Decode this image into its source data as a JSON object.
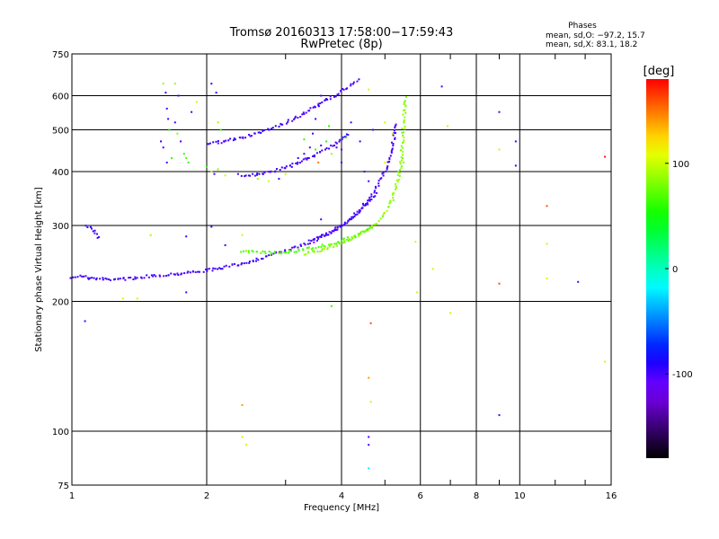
{
  "chart_data": {
    "type": "scatter",
    "title": "Tromsø 20160313 17:58:00−17:59:43",
    "subtitle": "RwPretec (8p)",
    "xlabel": "Frequency [MHz]",
    "ylabel": "Stationary phase Virtual Height [km]",
    "x_scale": "log",
    "y_scale": "log",
    "xlim": [
      1,
      16
    ],
    "ylim": [
      75,
      750
    ],
    "x_ticks": [
      1,
      2,
      4,
      6,
      8,
      10,
      16
    ],
    "x_tick_labels": [
      "1",
      "2",
      "4",
      "6",
      "8",
      "10",
      "16"
    ],
    "y_ticks": [
      75,
      100,
      200,
      300,
      400,
      500,
      600,
      750
    ],
    "y_tick_labels": [
      "75",
      "100",
      "200",
      "300",
      "400",
      "500",
      "600",
      "750"
    ],
    "grid": true,
    "stats": {
      "heading": "Phases",
      "line_o": "mean, sd,O: −97.2, 15.7",
      "line_x": "mean, sd,X: 83.1, 18.2"
    },
    "colorbar": {
      "label": "[deg]",
      "range": [
        -180,
        180
      ],
      "ticks": [
        100,
        0,
        -100
      ],
      "tick_labels": [
        "100",
        "0",
        "-100"
      ]
    },
    "traces": [
      {
        "x": [
          1.0,
          1.05,
          1.1,
          1.2,
          1.35,
          1.5,
          1.65,
          1.8,
          2.0,
          2.2,
          2.45,
          2.75,
          3.1,
          3.45,
          3.8,
          4.1,
          4.35,
          4.6,
          4.85,
          5.05,
          5.2,
          5.3
        ],
        "y": [
          228,
          229,
          226,
          225,
          226,
          229,
          231,
          233,
          236,
          240,
          246,
          255,
          265,
          276,
          290,
          305,
          322,
          345,
          375,
          410,
          460,
          520
        ],
        "phase": -100
      },
      {
        "x": [
          3.3,
          3.6,
          3.9,
          4.2,
          4.5,
          4.8,
          5.0,
          5.2,
          5.35,
          5.45,
          5.5,
          5.55
        ],
        "y": [
          258,
          263,
          270,
          279,
          290,
          305,
          320,
          345,
          380,
          430,
          500,
          600
        ],
        "phase": 85
      },
      {
        "x": [
          2.4,
          2.6,
          2.8,
          3.0,
          3.2,
          3.4,
          3.7,
          4.0,
          4.3,
          4.55,
          4.7
        ],
        "y": [
          262,
          260,
          259,
          260,
          262,
          266,
          270,
          276,
          284,
          292,
          298
        ],
        "phase": 70
      },
      {
        "x": [
          3.4,
          3.6,
          3.8,
          4.0,
          4.2,
          4.4,
          4.6,
          4.8
        ],
        "y": [
          276,
          282,
          290,
          300,
          312,
          325,
          340,
          358
        ],
        "phase": -100
      },
      {
        "x": [
          2.0,
          2.2,
          2.4,
          2.6,
          2.8,
          3.0,
          3.2,
          3.4,
          3.6,
          3.8,
          4.0,
          4.2,
          4.4
        ],
        "y": [
          465,
          470,
          480,
          490,
          505,
          520,
          535,
          555,
          575,
          595,
          615,
          635,
          655
        ],
        "phase": -100
      },
      {
        "x": [
          2.4,
          2.6,
          2.8,
          3.0,
          3.2,
          3.4,
          3.6,
          3.8,
          4.0,
          4.2
        ],
        "y": [
          388,
          395,
          400,
          410,
          420,
          432,
          445,
          460,
          475,
          490
        ],
        "phase": -100
      },
      {
        "x": [
          1.08,
          1.12,
          1.15
        ],
        "y": [
          300,
          290,
          278
        ],
        "phase": -100
      }
    ],
    "points": [
      {
        "x": 1.6,
        "y": 640,
        "phase": 90
      },
      {
        "x": 1.62,
        "y": 610,
        "phase": -100
      },
      {
        "x": 1.63,
        "y": 560,
        "phase": -100
      },
      {
        "x": 1.64,
        "y": 530,
        "phase": -100
      },
      {
        "x": 1.65,
        "y": 500,
        "phase": 50
      },
      {
        "x": 1.7,
        "y": 520,
        "phase": -100
      },
      {
        "x": 1.72,
        "y": 490,
        "phase": 80
      },
      {
        "x": 1.75,
        "y": 470,
        "phase": -100
      },
      {
        "x": 1.78,
        "y": 440,
        "phase": 60
      },
      {
        "x": 1.8,
        "y": 430,
        "phase": 70
      },
      {
        "x": 1.82,
        "y": 420,
        "phase": 60
      },
      {
        "x": 1.7,
        "y": 640,
        "phase": 90
      },
      {
        "x": 1.73,
        "y": 600,
        "phase": -100
      },
      {
        "x": 1.85,
        "y": 550,
        "phase": -100
      },
      {
        "x": 1.9,
        "y": 580,
        "phase": 100
      },
      {
        "x": 1.58,
        "y": 470,
        "phase": -100
      },
      {
        "x": 1.6,
        "y": 455,
        "phase": -100
      },
      {
        "x": 1.63,
        "y": 420,
        "phase": -100
      },
      {
        "x": 1.67,
        "y": 430,
        "phase": 60
      },
      {
        "x": 2.05,
        "y": 640,
        "phase": -100
      },
      {
        "x": 2.1,
        "y": 610,
        "phase": -100
      },
      {
        "x": 2.12,
        "y": 520,
        "phase": 90
      },
      {
        "x": 2.15,
        "y": 500,
        "phase": 60
      },
      {
        "x": 2.0,
        "y": 410,
        "phase": 60
      },
      {
        "x": 2.05,
        "y": 400,
        "phase": 100
      },
      {
        "x": 2.08,
        "y": 395,
        "phase": -100
      },
      {
        "x": 2.12,
        "y": 405,
        "phase": 80
      },
      {
        "x": 2.2,
        "y": 392,
        "phase": 100
      },
      {
        "x": 2.35,
        "y": 395,
        "phase": -100
      },
      {
        "x": 2.6,
        "y": 385,
        "phase": 90
      },
      {
        "x": 2.75,
        "y": 380,
        "phase": 100
      },
      {
        "x": 2.9,
        "y": 385,
        "phase": -100
      },
      {
        "x": 3.0,
        "y": 395,
        "phase": 100
      },
      {
        "x": 3.1,
        "y": 410,
        "phase": -100
      },
      {
        "x": 3.2,
        "y": 430,
        "phase": -100
      },
      {
        "x": 3.3,
        "y": 440,
        "phase": -100
      },
      {
        "x": 3.4,
        "y": 455,
        "phase": -100
      },
      {
        "x": 3.5,
        "y": 450,
        "phase": 60
      },
      {
        "x": 3.55,
        "y": 420,
        "phase": 150
      },
      {
        "x": 3.6,
        "y": 460,
        "phase": -100
      },
      {
        "x": 3.7,
        "y": 470,
        "phase": 60
      },
      {
        "x": 3.8,
        "y": 440,
        "phase": 90
      },
      {
        "x": 3.9,
        "y": 455,
        "phase": -100
      },
      {
        "x": 3.3,
        "y": 475,
        "phase": 60
      },
      {
        "x": 3.45,
        "y": 490,
        "phase": -100
      },
      {
        "x": 3.5,
        "y": 530,
        "phase": -100
      },
      {
        "x": 3.55,
        "y": 570,
        "phase": -100
      },
      {
        "x": 3.6,
        "y": 600,
        "phase": -100
      },
      {
        "x": 3.7,
        "y": 590,
        "phase": -100
      },
      {
        "x": 3.75,
        "y": 510,
        "phase": 60
      },
      {
        "x": 4.0,
        "y": 450,
        "phase": -100
      },
      {
        "x": 4.1,
        "y": 480,
        "phase": 60
      },
      {
        "x": 4.0,
        "y": 420,
        "phase": -100
      },
      {
        "x": 4.2,
        "y": 520,
        "phase": -100
      },
      {
        "x": 4.4,
        "y": 470,
        "phase": -100
      },
      {
        "x": 4.5,
        "y": 400,
        "phase": -100
      },
      {
        "x": 4.6,
        "y": 380,
        "phase": -100
      },
      {
        "x": 4.6,
        "y": 620,
        "phase": 100
      },
      {
        "x": 4.7,
        "y": 500,
        "phase": -100
      },
      {
        "x": 5.0,
        "y": 520,
        "phase": 100
      },
      {
        "x": 5.2,
        "y": 490,
        "phase": 100
      },
      {
        "x": 5.0,
        "y": 420,
        "phase": 120
      },
      {
        "x": 5.5,
        "y": 420,
        "phase": 80
      },
      {
        "x": 1.5,
        "y": 285,
        "phase": 90
      },
      {
        "x": 1.8,
        "y": 283,
        "phase": -100
      },
      {
        "x": 2.05,
        "y": 298,
        "phase": -100
      },
      {
        "x": 2.2,
        "y": 270,
        "phase": -100
      },
      {
        "x": 2.4,
        "y": 285,
        "phase": 100
      },
      {
        "x": 3.6,
        "y": 310,
        "phase": -100
      },
      {
        "x": 1.07,
        "y": 180,
        "phase": -100
      },
      {
        "x": 1.3,
        "y": 203,
        "phase": 100
      },
      {
        "x": 1.4,
        "y": 203,
        "phase": 100
      },
      {
        "x": 1.8,
        "y": 210,
        "phase": -100
      },
      {
        "x": 2.4,
        "y": 115,
        "phase": 140
      },
      {
        "x": 2.4,
        "y": 97,
        "phase": 100
      },
      {
        "x": 2.45,
        "y": 93,
        "phase": 100
      },
      {
        "x": 3.8,
        "y": 195,
        "phase": 60
      },
      {
        "x": 4.65,
        "y": 178,
        "phase": 160
      },
      {
        "x": 4.6,
        "y": 133,
        "phase": 140
      },
      {
        "x": 4.65,
        "y": 117,
        "phase": 100
      },
      {
        "x": 4.6,
        "y": 97,
        "phase": -100
      },
      {
        "x": 4.6,
        "y": 93,
        "phase": -100
      },
      {
        "x": 4.6,
        "y": 82,
        "phase": -20
      },
      {
        "x": 5.85,
        "y": 275,
        "phase": 100
      },
      {
        "x": 5.9,
        "y": 210,
        "phase": 100
      },
      {
        "x": 6.4,
        "y": 238,
        "phase": 100
      },
      {
        "x": 6.9,
        "y": 510,
        "phase": 100
      },
      {
        "x": 7.0,
        "y": 188,
        "phase": 100
      },
      {
        "x": 6.7,
        "y": 630,
        "phase": -100
      },
      {
        "x": 9.0,
        "y": 550,
        "phase": -100
      },
      {
        "x": 9.0,
        "y": 450,
        "phase": 100
      },
      {
        "x": 9.0,
        "y": 220,
        "phase": 160
      },
      {
        "x": 9.0,
        "y": 109,
        "phase": -100
      },
      {
        "x": 9.8,
        "y": 470,
        "phase": -100
      },
      {
        "x": 9.8,
        "y": 413,
        "phase": -100
      },
      {
        "x": 11.5,
        "y": 333,
        "phase": 160
      },
      {
        "x": 11.5,
        "y": 272,
        "phase": 100
      },
      {
        "x": 11.5,
        "y": 226,
        "phase": 100
      },
      {
        "x": 13.5,
        "y": 222,
        "phase": -100
      },
      {
        "x": 15.5,
        "y": 433,
        "phase": 175
      },
      {
        "x": 15.5,
        "y": 145,
        "phase": 100
      }
    ]
  }
}
